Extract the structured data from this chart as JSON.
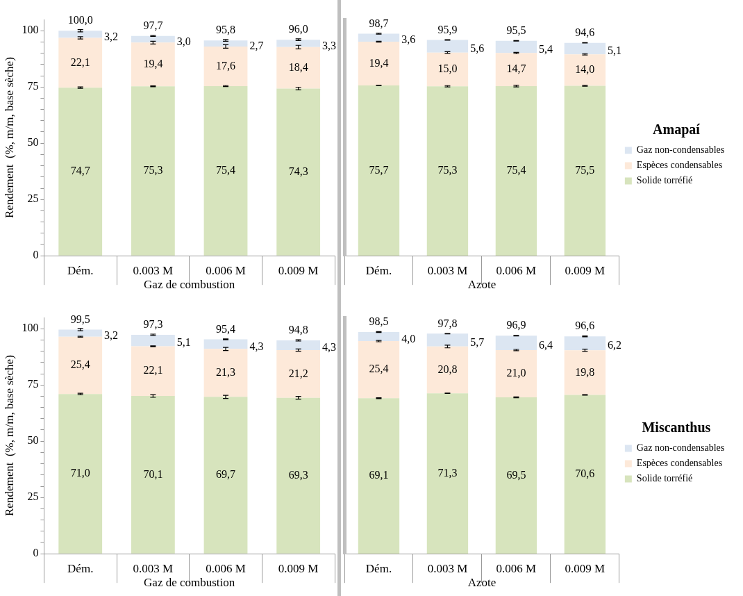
{
  "chart_data": [
    {
      "type": "bar",
      "stacked": true,
      "xlabel": "Gaz de combustion",
      "ylabel": "Rendement  (%, m/m, base sèche)",
      "categories": [
        "Dém.",
        "0.003 M",
        "0.006 M",
        "0.009 M"
      ],
      "series": [
        {
          "color": "#d7e4bd",
          "values": [
            74.7,
            75.3,
            75.4,
            74.3
          ],
          "value_labels": [
            "74,7",
            "75,3",
            "75,4",
            "74,3"
          ],
          "errors": [
            0.3,
            0.2,
            0.2,
            0.6
          ]
        },
        {
          "color": "#fde9d9",
          "values": [
            22.1,
            19.4,
            17.6,
            18.4
          ],
          "value_labels": [
            "22,1",
            "19,4",
            "17,6",
            "18,4"
          ],
          "errors": [
            0.5,
            0.6,
            0.8,
            0.8
          ]
        },
        {
          "color": "#dce6f2",
          "values": [
            3.2,
            3.0,
            2.7,
            3.3
          ],
          "value_labels": [
            "3,2",
            "3,0",
            "2,7",
            "3,3"
          ],
          "errors": [
            0.5,
            0.2,
            0.4,
            0.4
          ]
        }
      ],
      "totals": [
        "100,0",
        "97,7",
        "95,8",
        "96,0"
      ],
      "ylim": [
        0,
        105
      ],
      "yticks": [
        0,
        {
          "value": 5,
          "label": null
        },
        {
          "value": 10,
          "label": null
        },
        {
          "value": 15,
          "label": null
        },
        {
          "value": 20,
          "label": null
        },
        25,
        {
          "value": 30,
          "label": null
        },
        {
          "value": 35,
          "label": null
        },
        {
          "value": 40,
          "label": null
        },
        {
          "value": 45,
          "label": null
        },
        50,
        {
          "value": 55,
          "label": null
        },
        {
          "value": 60,
          "label": null
        },
        {
          "value": 65,
          "label": null
        },
        {
          "value": 70,
          "label": null
        },
        75,
        {
          "value": 80,
          "label": null
        },
        {
          "value": 85,
          "label": null
        },
        {
          "value": 90,
          "label": null
        },
        {
          "value": 95,
          "label": null
        },
        100
      ],
      "grid": false
    },
    {
      "type": "bar",
      "stacked": true,
      "xlabel": "Azote",
      "legend": "right",
      "legend_title": "Amapaí",
      "tick_labels": "x",
      "categories": [
        "Dém.",
        "0.003 M",
        "0.006 M",
        "0.009 M"
      ],
      "series": [
        {
          "name": "Solide torréfié",
          "color": "#d7e4bd",
          "values": [
            75.7,
            75.3,
            75.4,
            75.5
          ],
          "value_labels": [
            "75,7",
            "75,3",
            "75,4",
            "75,5"
          ],
          "errors": [
            0.1,
            0.3,
            0.4,
            0.2
          ]
        },
        {
          "name": "Espèces condensables",
          "color": "#fde9d9",
          "values": [
            19.4,
            15.0,
            14.7,
            14.0
          ],
          "value_labels": [
            "19,4",
            "15,0",
            "14,7",
            "14,0"
          ],
          "errors": [
            0.2,
            0.4,
            0.3,
            0.3
          ]
        },
        {
          "name": "Gaz non-condensables",
          "color": "#dce6f2",
          "values": [
            3.6,
            5.6,
            5.4,
            5.1
          ],
          "value_labels": [
            "3,6",
            "5,6",
            "5,4",
            "5,1"
          ],
          "errors": [
            0.2,
            0.1,
            0.1,
            0.1
          ]
        }
      ],
      "totals": [
        "98,7",
        "95,9",
        "95,5",
        "94,6"
      ],
      "ylim": [
        0,
        105
      ],
      "grid": false
    },
    {
      "type": "bar",
      "stacked": true,
      "xlabel": "Gaz de combustion",
      "ylabel": "Rendement  (%, m/m, base sèche)",
      "categories": [
        "Dém.",
        "0.003 M",
        "0.006 M",
        "0.009 M"
      ],
      "series": [
        {
          "color": "#d7e4bd",
          "values": [
            71.0,
            70.1,
            69.7,
            69.3
          ],
          "value_labels": [
            "71,0",
            "70,1",
            "69,7",
            "69,3"
          ],
          "errors": [
            0.3,
            0.6,
            0.7,
            0.6
          ]
        },
        {
          "color": "#fde9d9",
          "values": [
            25.4,
            22.1,
            21.3,
            21.2
          ],
          "value_labels": [
            "25,4",
            "22,1",
            "21,3",
            "21,2"
          ],
          "errors": [
            0.2,
            0.2,
            0.7,
            0.5
          ]
        },
        {
          "color": "#dce6f2",
          "values": [
            3.2,
            5.1,
            4.3,
            4.3
          ],
          "value_labels": [
            "3,2",
            "5,1",
            "4,3",
            "4,3"
          ],
          "errors": [
            0.5,
            0.3,
            0.2,
            0.3
          ]
        }
      ],
      "totals": [
        "99,5",
        "97,3",
        "95,4",
        "94,8"
      ],
      "ylim": [
        0,
        105
      ],
      "yticks": [
        0,
        {
          "value": 5,
          "label": null
        },
        {
          "value": 10,
          "label": null
        },
        {
          "value": 15,
          "label": null
        },
        {
          "value": 20,
          "label": null
        },
        25,
        {
          "value": 30,
          "label": null
        },
        {
          "value": 35,
          "label": null
        },
        {
          "value": 40,
          "label": null
        },
        {
          "value": 45,
          "label": null
        },
        50,
        {
          "value": 55,
          "label": null
        },
        {
          "value": 60,
          "label": null
        },
        {
          "value": 65,
          "label": null
        },
        {
          "value": 70,
          "label": null
        },
        75,
        {
          "value": 80,
          "label": null
        },
        {
          "value": 85,
          "label": null
        },
        {
          "value": 90,
          "label": null
        },
        {
          "value": 95,
          "label": null
        },
        100
      ],
      "grid": false
    },
    {
      "type": "bar",
      "stacked": true,
      "xlabel": "Azote",
      "legend": "right",
      "legend_title": "Miscanthus",
      "tick_labels": "x",
      "categories": [
        "Dém.",
        "0.003 M",
        "0.006 M",
        "0.009 M"
      ],
      "series": [
        {
          "name": "Solide torréfié",
          "color": "#d7e4bd",
          "values": [
            69.1,
            71.3,
            69.5,
            70.6
          ],
          "value_labels": [
            "69,1",
            "71,3",
            "69,5",
            "70,6"
          ],
          "errors": [
            0.2,
            0.1,
            0.2,
            0.1
          ]
        },
        {
          "name": "Espèces condensables",
          "color": "#fde9d9",
          "values": [
            25.4,
            20.8,
            21.0,
            19.8
          ],
          "value_labels": [
            "25,4",
            "20,8",
            "21,0",
            "19,8"
          ],
          "errors": [
            0.3,
            0.6,
            0.3,
            0.5
          ]
        },
        {
          "name": "Gaz non-condensables",
          "color": "#dce6f2",
          "values": [
            4.0,
            5.7,
            6.4,
            6.2
          ],
          "value_labels": [
            "4,0",
            "5,7",
            "6,4",
            "6,2"
          ],
          "errors": [
            0.2,
            0.1,
            0.1,
            0.2
          ]
        }
      ],
      "totals": [
        "98,5",
        "97,8",
        "96,9",
        "96,6"
      ],
      "ylim": [
        0,
        105
      ],
      "grid": false
    }
  ]
}
